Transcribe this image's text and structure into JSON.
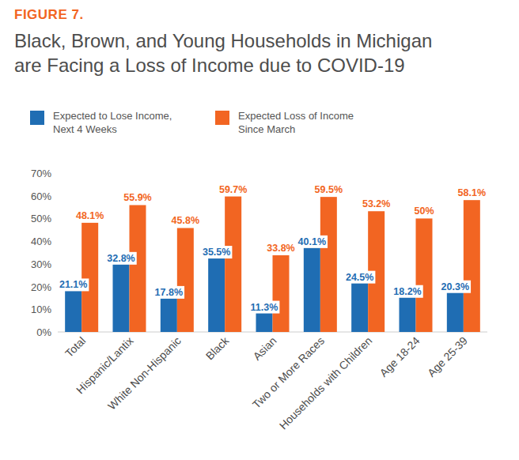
{
  "chart_data": {
    "type": "bar",
    "annotations": [
      "FIGURE 7."
    ],
    "title": "Black, Brown, and Young Households in Michigan are Facing a Loss of Income due to COVID-19",
    "categories": [
      "Total",
      "Hispanic/Lantix",
      "White Non-Hispanic",
      "Black",
      "Asian",
      "Two or More Races",
      "Households with Children",
      "Age 18-24",
      "Age 25-39"
    ],
    "series": [
      {
        "name": "Expected to Lose Income, Next 4 Weeks",
        "color": "#1f6db3",
        "values": [
          21.1,
          32.8,
          17.8,
          35.5,
          11.3,
          40.1,
          24.5,
          18.2,
          20.3
        ],
        "value_labels": [
          "21.1%",
          "32.8%",
          "17.8%",
          "35.5%",
          "11.3%",
          "40.1%",
          "24.5%",
          "18.2%",
          "20.3%"
        ]
      },
      {
        "name": "Expected Loss of Income Since March",
        "color": "#f26522",
        "values": [
          48.1,
          55.9,
          45.8,
          59.7,
          33.8,
          59.5,
          53.2,
          50,
          58.1
        ],
        "value_labels": [
          "48.1%",
          "55.9%",
          "45.8%",
          "59.7%",
          "33.8%",
          "59.5%",
          "53.2%",
          "50%",
          "58.1%"
        ]
      }
    ],
    "ylim": [
      0,
      70
    ],
    "yticks": [
      {
        "value": 0,
        "label": "0%"
      },
      {
        "value": 10,
        "label": "10%"
      },
      {
        "value": 20,
        "label": "20%"
      },
      {
        "value": 30,
        "label": "30%"
      },
      {
        "value": 40,
        "label": "40%"
      },
      {
        "value": 50,
        "label": "50%"
      },
      {
        "value": 60,
        "label": "60%"
      },
      {
        "value": 70,
        "label": "70%"
      }
    ],
    "grid": false,
    "legend": "top",
    "data_labels": true
  }
}
